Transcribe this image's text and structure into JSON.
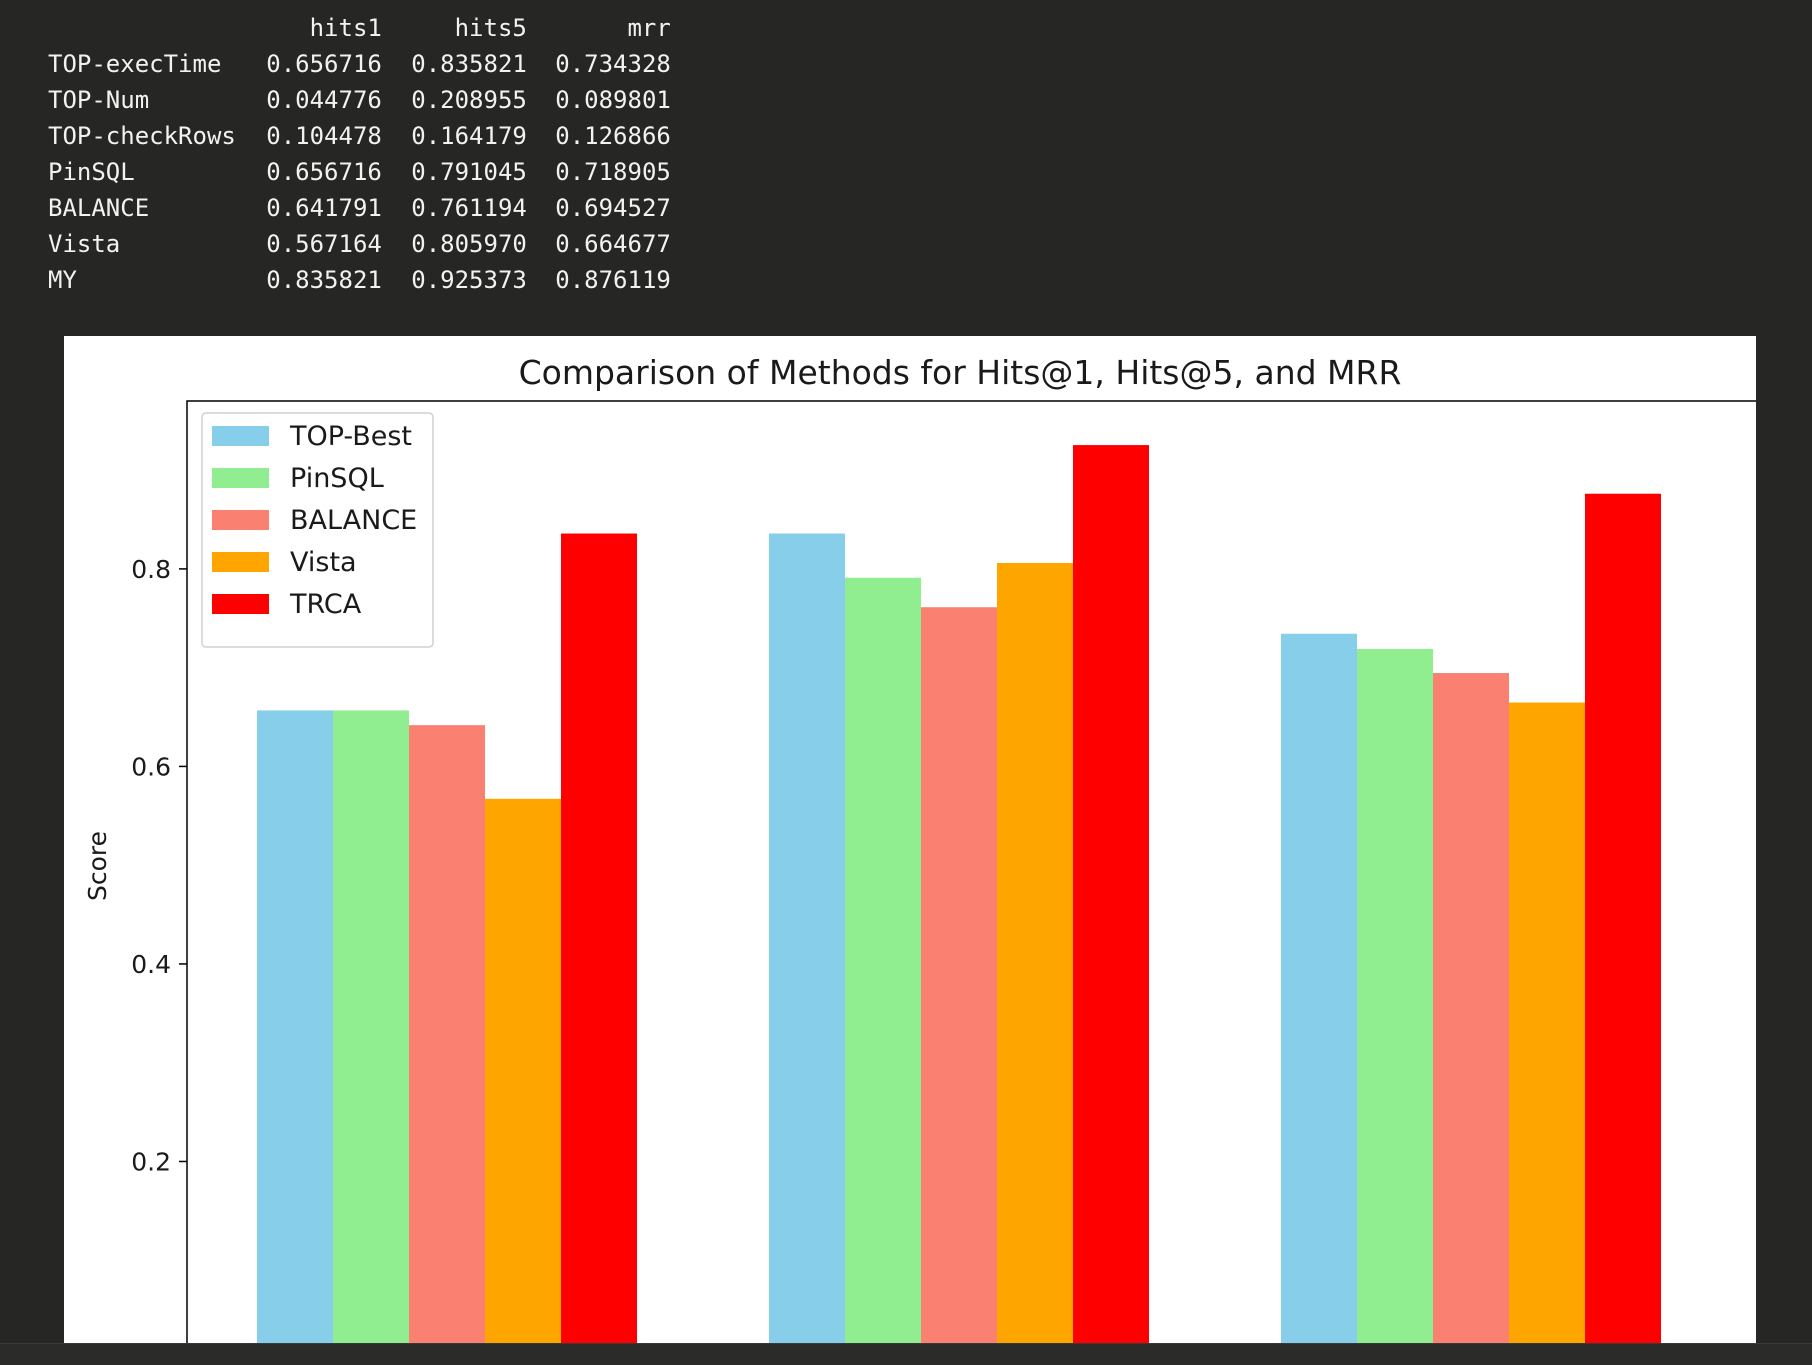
{
  "output": {
    "columns": [
      "hits1",
      "hits5",
      "mrr"
    ],
    "rows": [
      {
        "label": "TOP-execTime",
        "values": [
          "0.656716",
          "0.835821",
          "0.734328"
        ]
      },
      {
        "label": "TOP-Num",
        "values": [
          "0.044776",
          "0.208955",
          "0.089801"
        ]
      },
      {
        "label": "TOP-checkRows",
        "values": [
          "0.104478",
          "0.164179",
          "0.126866"
        ]
      },
      {
        "label": "PinSQL",
        "values": [
          "0.656716",
          "0.791045",
          "0.718905"
        ]
      },
      {
        "label": "BALANCE",
        "values": [
          "0.641791",
          "0.761194",
          "0.694527"
        ]
      },
      {
        "label": "Vista",
        "values": [
          "0.567164",
          "0.805970",
          "0.664677"
        ]
      },
      {
        "label": "MY",
        "values": [
          "0.835821",
          "0.925373",
          "0.876119"
        ]
      }
    ]
  },
  "chart_data": {
    "type": "bar",
    "title": "Comparison of Methods for Hits@1, Hits@5, and MRR",
    "xlabel": "",
    "ylabel": "Score",
    "categories": [
      "",
      "",
      ""
    ],
    "ylim": [
      0,
      0.97
    ],
    "yticks": [
      "0.0",
      "0.2",
      "0.4",
      "0.6",
      "0.8"
    ],
    "grid": false,
    "legend_position": "top-left",
    "series": [
      {
        "name": "TOP-Best",
        "color": "#87ceeb",
        "values": [
          0.656716,
          0.835821,
          0.734328
        ]
      },
      {
        "name": "PinSQL",
        "color": "#90ee90",
        "values": [
          0.656716,
          0.791045,
          0.718905
        ]
      },
      {
        "name": "BALANCE",
        "color": "#fa8072",
        "values": [
          0.641791,
          0.761194,
          0.694527
        ]
      },
      {
        "name": "Vista",
        "color": "#ffa500",
        "values": [
          0.567164,
          0.80597,
          0.664677
        ]
      },
      {
        "name": "TRCA",
        "color": "#ff0000",
        "values": [
          0.835821,
          0.925373,
          0.876119
        ]
      }
    ]
  }
}
